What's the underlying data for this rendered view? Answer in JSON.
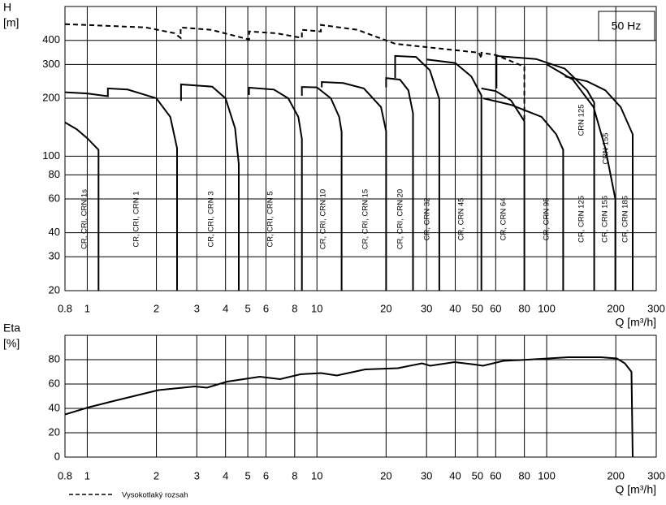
{
  "chart_data": [
    {
      "type": "line",
      "xlog": true,
      "ylog": true,
      "grid": true,
      "y_label": "H",
      "y_unit": "[m]",
      "x_label": "Q [m³/h]",
      "annotation": "50 Hz",
      "curve_labels": [
        "CRN 125",
        "CRN 155"
      ],
      "xlim": [
        0.8,
        300
      ],
      "ylim": [
        20,
        600
      ],
      "xticks": [
        0.8,
        1,
        2,
        3,
        4,
        5,
        6,
        8,
        10,
        20,
        30,
        40,
        50,
        60,
        80,
        100,
        200,
        300
      ],
      "yticks": [
        20,
        30,
        40,
        60,
        80,
        100,
        200,
        300,
        400
      ],
      "series": [
        {
          "name": "CR, CRI, CRN 1s",
          "color": "#000000",
          "x": [
            0.8,
            0.9,
            1.0,
            1.12,
            1.12
          ],
          "values": [
            150,
            138,
            124,
            108,
            20
          ]
        },
        {
          "name": "CR, CRI, CRN 1",
          "color": "#000000",
          "x": [
            0.8,
            1.0,
            1.23,
            1.23,
            1.5,
            2.0,
            2.3,
            2.46,
            2.46
          ],
          "values": [
            215,
            212,
            205,
            225,
            222,
            200,
            160,
            110,
            20
          ]
        },
        {
          "name": "CR, CRI, CRN 3",
          "color": "#000000",
          "x": [
            2.56,
            2.56,
            3.5,
            4.0,
            4.4,
            4.57,
            4.57
          ],
          "values": [
            194,
            236,
            230,
            200,
            140,
            91,
            20
          ]
        },
        {
          "name": "CR, CRI, CRN 5",
          "color": "#000000",
          "x": [
            5.06,
            5.06,
            6.5,
            7.5,
            8.3,
            8.6,
            8.6
          ],
          "values": [
            208,
            227,
            222,
            200,
            160,
            123,
            20
          ]
        },
        {
          "name": "CR, CRI, CRN 10",
          "color": "#000000",
          "x": [
            8.6,
            8.6,
            10,
            11.5,
            12.5,
            12.8,
            12.8
          ],
          "values": [
            206,
            229,
            228,
            200,
            160,
            134,
            20
          ]
        },
        {
          "name": "CR, CRI, CRN 15",
          "color": "#000000",
          "x": [
            10.5,
            10.5,
            13,
            16,
            19,
            20.0,
            20.0
          ],
          "values": [
            228,
            243,
            240,
            225,
            180,
            135,
            20
          ]
        },
        {
          "name": "CR, CRI, CRN 20",
          "color": "#000000",
          "x": [
            20.0,
            20.0,
            23,
            25,
            26.2,
            26.2
          ],
          "values": [
            228,
            255,
            250,
            220,
            167,
            20
          ]
        },
        {
          "name": "CR, CRN 32",
          "color": "#000000",
          "x": [
            21.9,
            21.9,
            27,
            31,
            34.1,
            34.1
          ],
          "values": [
            255,
            332,
            328,
            280,
            198,
            20
          ]
        },
        {
          "name": "CR, CRN 45",
          "color": "#000000",
          "x": [
            30,
            40,
            47,
            52,
            52
          ],
          "values": [
            318,
            305,
            260,
            207,
            20
          ]
        },
        {
          "name": "CR, CRN 64",
          "color": "#000000",
          "x": [
            52,
            60,
            70,
            80,
            80
          ],
          "values": [
            225,
            218,
            195,
            152,
            20
          ]
        },
        {
          "name": "CR, CRN 95",
          "color": "#000000",
          "x": [
            53,
            70,
            95,
            110,
            118,
            118
          ],
          "values": [
            200,
            185,
            160,
            130,
            108,
            20
          ]
        },
        {
          "name": "CR, CRN 125",
          "color": "#000000",
          "x": [
            60.5,
            60.5,
            90,
            120,
            150,
            161,
            161
          ],
          "values": [
            225,
            332,
            320,
            285,
            220,
            190,
            20
          ]
        },
        {
          "name": "CR, CRN 155",
          "color": "#000000",
          "x": [
            100,
            130,
            160,
            180,
            199,
            199
          ],
          "values": [
            300,
            250,
            180,
            110,
            60,
            20
          ]
        },
        {
          "name": "CR, CRN 185",
          "color": "#000000",
          "x": [
            120,
            150,
            180,
            210,
            237,
            237
          ],
          "values": [
            260,
            245,
            220,
            180,
            130,
            20
          ]
        },
        {
          "name": "Vysokotlaký rozsah",
          "color": "#000000",
          "dashed": true,
          "x": [
            0.8,
            1.8,
            2.4,
            2.55,
            2.55,
            3.46,
            5.07,
            5.07,
            6.64,
            8.6,
            8.6,
            10.4,
            10.4,
            15.0,
            21.9,
            50.7,
            52,
            52,
            60.5,
            80,
            80
          ],
          "values": [
            486,
            467,
            436,
            412,
            467,
            454,
            404,
            445,
            436,
            412,
            454,
            445,
            481,
            454,
            384,
            345,
            322,
            345,
            335,
            292,
            152
          ]
        }
      ]
    },
    {
      "type": "line",
      "xlog": true,
      "grid": true,
      "y_label": "Eta",
      "y_unit": "[%]",
      "x_label": "Q [m³/h]",
      "xlim": [
        0.8,
        300
      ],
      "ylim": [
        0,
        100
      ],
      "xticks": [
        0.8,
        1,
        2,
        3,
        4,
        5,
        6,
        8,
        10,
        20,
        30,
        40,
        50,
        60,
        80,
        100,
        200,
        300
      ],
      "yticks": [
        0,
        20,
        40,
        60,
        80
      ],
      "series": [
        {
          "color": "#000000",
          "x": [
            0.8,
            1.02,
            1.3,
            2.04,
            2.94,
            3.32,
            4.07,
            5.64,
            6.91,
            8.47,
            10.4,
            12.2,
            16.2,
            22.5,
            28.7,
            31.1,
            39.7,
            48.7,
            52.8,
            64.7,
            82.6,
            124,
            172,
            202,
            219,
            234,
            237
          ],
          "values": [
            35,
            41,
            46,
            55,
            58,
            57,
            62,
            66,
            64,
            68,
            69,
            67,
            72,
            73,
            77,
            75,
            78,
            76,
            75,
            79,
            80,
            82,
            82,
            81,
            77,
            70,
            0
          ]
        }
      ]
    }
  ]
}
